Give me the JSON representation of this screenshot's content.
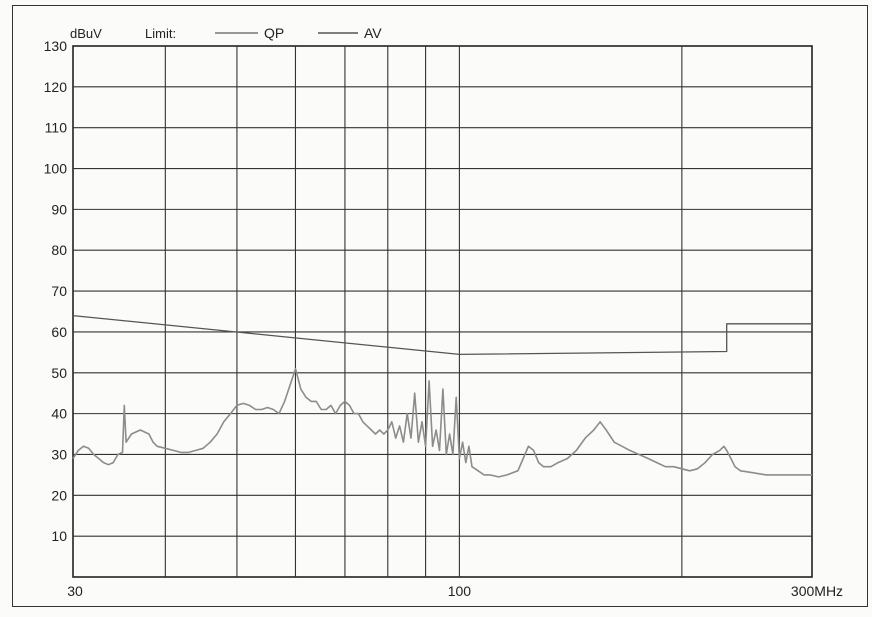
{
  "chart_data": {
    "type": "line",
    "x_scale": "log",
    "xlim": [
      30,
      300
    ],
    "ylim": [
      0,
      130
    ],
    "ylabel": "dBuV",
    "xlabel": "",
    "grid": true,
    "y_ticks": [
      130,
      120,
      110,
      100,
      90,
      80,
      70,
      60,
      50,
      40,
      30,
      20,
      10
    ],
    "x_tick_labels": [
      {
        "value": 30,
        "label": "30"
      },
      {
        "value": 100,
        "label": "100"
      },
      {
        "value": 300,
        "label": "300MHz"
      }
    ],
    "x_gridlines": [
      40,
      50,
      60,
      70,
      80,
      90,
      100,
      200
    ],
    "legend": {
      "title": "Limit:",
      "placement": "top",
      "entries": [
        {
          "name": "QP",
          "color": "#777777"
        },
        {
          "name": "AV",
          "color": "#555555"
        }
      ]
    },
    "series": [
      {
        "name": "QP",
        "color": "#555555",
        "points": [
          [
            30,
            64
          ],
          [
            100,
            54.5
          ],
          [
            230,
            55.2
          ],
          [
            230,
            62
          ],
          [
            300,
            62
          ]
        ]
      },
      {
        "name": "",
        "color": "#8c8c8c",
        "points": [
          [
            30,
            29
          ],
          [
            30.5,
            31
          ],
          [
            31,
            32
          ],
          [
            31.5,
            31.5
          ],
          [
            32,
            30
          ],
          [
            32.5,
            29
          ],
          [
            33,
            28
          ],
          [
            33.5,
            27.5
          ],
          [
            34,
            28
          ],
          [
            34.5,
            30
          ],
          [
            35,
            30.5
          ],
          [
            35.2,
            42
          ],
          [
            35.4,
            33
          ],
          [
            36,
            35
          ],
          [
            37,
            36
          ],
          [
            38,
            35
          ],
          [
            38.5,
            33
          ],
          [
            39,
            32
          ],
          [
            40,
            31.5
          ],
          [
            41,
            31
          ],
          [
            42,
            30.5
          ],
          [
            43,
            30.5
          ],
          [
            44,
            31
          ],
          [
            45,
            31.5
          ],
          [
            46,
            33
          ],
          [
            47,
            35
          ],
          [
            48,
            38
          ],
          [
            49,
            40
          ],
          [
            50,
            42
          ],
          [
            51,
            42.5
          ],
          [
            52,
            42
          ],
          [
            53,
            41
          ],
          [
            54,
            41
          ],
          [
            55,
            41.5
          ],
          [
            56,
            41
          ],
          [
            57,
            40
          ],
          [
            58,
            43
          ],
          [
            59,
            47
          ],
          [
            60,
            51
          ],
          [
            61,
            46
          ],
          [
            62,
            44
          ],
          [
            63,
            43
          ],
          [
            64,
            43
          ],
          [
            65,
            41
          ],
          [
            66,
            41
          ],
          [
            67,
            42
          ],
          [
            68,
            40
          ],
          [
            69,
            42
          ],
          [
            70,
            43
          ],
          [
            71,
            42
          ],
          [
            72,
            40
          ],
          [
            73,
            40
          ],
          [
            74,
            38
          ],
          [
            75,
            37
          ],
          [
            76,
            36
          ],
          [
            77,
            35
          ],
          [
            78,
            36
          ],
          [
            79,
            35
          ],
          [
            80,
            36
          ],
          [
            81,
            38
          ],
          [
            82,
            34
          ],
          [
            83,
            37
          ],
          [
            84,
            33
          ],
          [
            85,
            40
          ],
          [
            86,
            34
          ],
          [
            87,
            45
          ],
          [
            88,
            33
          ],
          [
            89,
            38
          ],
          [
            90,
            32
          ],
          [
            91,
            48
          ],
          [
            92,
            32
          ],
          [
            93,
            36
          ],
          [
            94,
            31
          ],
          [
            95,
            46
          ],
          [
            96,
            30
          ],
          [
            97,
            35
          ],
          [
            98,
            30
          ],
          [
            99,
            44
          ],
          [
            100,
            29
          ],
          [
            101,
            33
          ],
          [
            102,
            28
          ],
          [
            103,
            32
          ],
          [
            104,
            27
          ],
          [
            106,
            26
          ],
          [
            108,
            25
          ],
          [
            110,
            25
          ],
          [
            113,
            24.5
          ],
          [
            116,
            25
          ],
          [
            120,
            26
          ],
          [
            122,
            29
          ],
          [
            124,
            32
          ],
          [
            126,
            31
          ],
          [
            128,
            28
          ],
          [
            130,
            27
          ],
          [
            133,
            27
          ],
          [
            136,
            28
          ],
          [
            140,
            29
          ],
          [
            144,
            31
          ],
          [
            148,
            34
          ],
          [
            152,
            36
          ],
          [
            155,
            38
          ],
          [
            158,
            36
          ],
          [
            162,
            33
          ],
          [
            166,
            32
          ],
          [
            170,
            31
          ],
          [
            175,
            30
          ],
          [
            180,
            29
          ],
          [
            185,
            28
          ],
          [
            190,
            27
          ],
          [
            195,
            27
          ],
          [
            200,
            26.5
          ],
          [
            205,
            26
          ],
          [
            210,
            26.5
          ],
          [
            215,
            28
          ],
          [
            220,
            30
          ],
          [
            225,
            31
          ],
          [
            228,
            32
          ],
          [
            230,
            31
          ],
          [
            233,
            29
          ],
          [
            236,
            27
          ],
          [
            240,
            26
          ],
          [
            250,
            25.5
          ],
          [
            260,
            25
          ],
          [
            270,
            25
          ],
          [
            280,
            25
          ],
          [
            290,
            25
          ],
          [
            300,
            25
          ]
        ]
      }
    ]
  }
}
